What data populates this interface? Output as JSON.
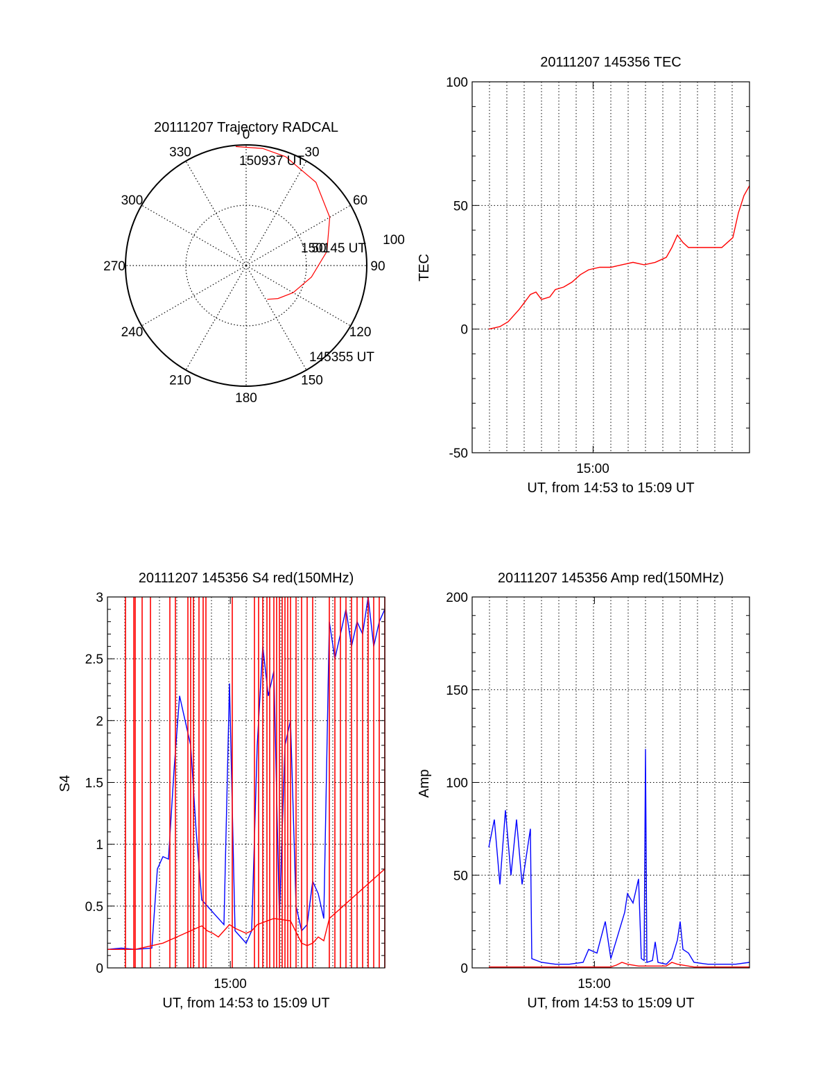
{
  "chart_data": [
    {
      "type": "polar",
      "title": "20111207 Trajectory RADCAL",
      "angle_labels": [
        "0",
        "30",
        "60",
        "90",
        "120",
        "150",
        "180",
        "210",
        "240",
        "270",
        "300",
        "330"
      ],
      "radial_labels": [
        "50",
        "100"
      ],
      "trajectory": {
        "color": "#ff0000",
        "points": [
          {
            "azimuth": 148,
            "radius": 33
          },
          {
            "azimuth": 136,
            "radius": 38
          },
          {
            "azimuth": 120,
            "radius": 45
          },
          {
            "azimuth": 100,
            "radius": 55
          },
          {
            "azimuth": 80,
            "radius": 68
          },
          {
            "azimuth": 60,
            "radius": 80
          },
          {
            "azimuth": 40,
            "radius": 90
          },
          {
            "azimuth": 20,
            "radius": 96
          },
          {
            "azimuth": 8,
            "radius": 98
          },
          {
            "azimuth": 355,
            "radius": 99
          }
        ],
        "start_label": "145355 UT",
        "mid_label": "150145 UT",
        "end_label": "150937 UT"
      }
    },
    {
      "type": "line",
      "title": "20111207 145356 TEC",
      "ylabel": "TEC",
      "xlabel": "UT, from 14:53 to 15:09 UT",
      "xtick": "15:00",
      "ylim": [
        -50,
        100
      ],
      "yticks": [
        "-50",
        "0",
        "50",
        "100"
      ],
      "grid": true,
      "series": [
        {
          "color": "#ff0000",
          "x": [
            0.06,
            0.1,
            0.13,
            0.17,
            0.19,
            0.21,
            0.23,
            0.25,
            0.28,
            0.3,
            0.33,
            0.36,
            0.39,
            0.42,
            0.46,
            0.5,
            0.54,
            0.58,
            0.62,
            0.66,
            0.7,
            0.72,
            0.74,
            0.76,
            0.78,
            0.82,
            0.86,
            0.9,
            0.94,
            0.96,
            0.98,
            1.0
          ],
          "values": [
            0,
            1,
            3,
            8,
            11,
            14,
            15,
            12,
            13,
            16,
            17,
            19,
            22,
            24,
            25,
            25,
            26,
            27,
            26,
            27,
            29,
            33,
            38,
            35,
            33,
            33,
            33,
            33,
            37,
            47,
            54,
            58
          ]
        }
      ]
    },
    {
      "type": "line",
      "title": "20111207 145356 S4 red(150MHz)",
      "ylabel": "S4",
      "xlabel": "UT, from 14:53 to 15:09 UT",
      "xtick": "15:00",
      "ylim": [
        0,
        3
      ],
      "yticks": [
        "0",
        "0.5",
        "1",
        "1.5",
        "2",
        "2.5",
        "3"
      ],
      "grid": true,
      "series": [
        {
          "color": "#0000ff",
          "x": [
            0.0,
            0.05,
            0.1,
            0.16,
            0.18,
            0.2,
            0.22,
            0.24,
            0.26,
            0.28,
            0.3,
            0.32,
            0.34,
            0.36,
            0.38,
            0.4,
            0.42,
            0.44,
            0.46,
            0.48,
            0.5,
            0.52,
            0.54,
            0.56,
            0.58,
            0.6,
            0.62,
            0.64,
            0.66,
            0.68,
            0.7,
            0.72,
            0.74,
            0.76,
            0.78,
            0.8,
            0.82,
            0.84,
            0.86,
            0.88,
            0.9,
            0.92,
            0.94,
            0.96,
            0.98,
            1.0
          ],
          "values": [
            0.15,
            0.16,
            0.15,
            0.16,
            0.8,
            0.9,
            0.88,
            1.6,
            2.2,
            2.0,
            1.8,
            1.1,
            0.55,
            0.5,
            0.45,
            0.4,
            0.35,
            2.3,
            0.3,
            0.25,
            0.2,
            0.3,
            1.8,
            2.6,
            2.2,
            2.4,
            0.4,
            1.8,
            2.0,
            0.5,
            0.3,
            0.35,
            0.7,
            0.6,
            0.4,
            2.8,
            2.5,
            2.7,
            2.9,
            2.6,
            2.8,
            2.7,
            3.0,
            2.6,
            2.8,
            2.9
          ]
        },
        {
          "color": "#ff0000",
          "x": [
            0.0,
            0.1,
            0.2,
            0.3,
            0.32,
            0.34,
            0.36,
            0.38,
            0.4,
            0.42,
            0.44,
            0.46,
            0.48,
            0.5,
            0.52,
            0.54,
            0.6,
            0.66,
            0.7,
            0.72,
            0.74,
            0.76,
            0.78,
            0.8,
            0.9,
            1.0
          ],
          "values": [
            0.15,
            0.15,
            0.2,
            0.3,
            0.32,
            0.34,
            0.3,
            0.28,
            0.25,
            0.3,
            0.35,
            0.32,
            0.3,
            0.28,
            0.3,
            0.35,
            0.4,
            0.38,
            0.2,
            0.18,
            0.2,
            0.25,
            0.22,
            0.4,
            0.6,
            0.8
          ],
          "spike_x": [
            0.065,
            0.095,
            0.1,
            0.125,
            0.155,
            0.225,
            0.245,
            0.29,
            0.3,
            0.31,
            0.33,
            0.345,
            0.355,
            0.45,
            0.53,
            0.545,
            0.56,
            0.575,
            0.585,
            0.6,
            0.61,
            0.62,
            0.63,
            0.64,
            0.65,
            0.66,
            0.68,
            0.7,
            0.72,
            0.74,
            0.8,
            0.82,
            0.84,
            0.86,
            0.88,
            0.9,
            0.92,
            0.94,
            0.96,
            0.98,
            1.0
          ]
        }
      ]
    },
    {
      "type": "line",
      "title": "20111207 145356 Amp red(150MHz)",
      "ylabel": "Amp",
      "xlabel": "UT, from 14:53 to 15:09 UT",
      "xtick": "15:00",
      "ylim": [
        0,
        200
      ],
      "yticks": [
        "0",
        "50",
        "100",
        "150",
        "200"
      ],
      "grid": true,
      "series": [
        {
          "color": "#0000ff",
          "x": [
            0.06,
            0.08,
            0.1,
            0.12,
            0.14,
            0.16,
            0.18,
            0.21,
            0.215,
            0.25,
            0.3,
            0.35,
            0.4,
            0.42,
            0.45,
            0.48,
            0.5,
            0.52,
            0.55,
            0.56,
            0.58,
            0.6,
            0.61,
            0.62,
            0.625,
            0.63,
            0.65,
            0.66,
            0.67,
            0.7,
            0.72,
            0.74,
            0.75,
            0.76,
            0.78,
            0.8,
            0.85,
            0.9,
            0.95,
            1.0
          ],
          "values": [
            65,
            80,
            45,
            85,
            50,
            80,
            45,
            75,
            5,
            3,
            2,
            2,
            3,
            10,
            8,
            25,
            5,
            15,
            30,
            40,
            35,
            48,
            5,
            4,
            118,
            3,
            4,
            14,
            3,
            2,
            5,
            15,
            25,
            10,
            8,
            3,
            2,
            2,
            2,
            3
          ]
        },
        {
          "color": "#ff0000",
          "x": [
            0.06,
            0.2,
            0.4,
            0.5,
            0.52,
            0.54,
            0.56,
            0.6,
            0.7,
            0.72,
            0.74,
            0.8,
            1.0
          ],
          "values": [
            0.5,
            0.5,
            0.5,
            0.5,
            1.5,
            3,
            2,
            1,
            1,
            3,
            2,
            0.5,
            0.5
          ]
        }
      ]
    }
  ]
}
